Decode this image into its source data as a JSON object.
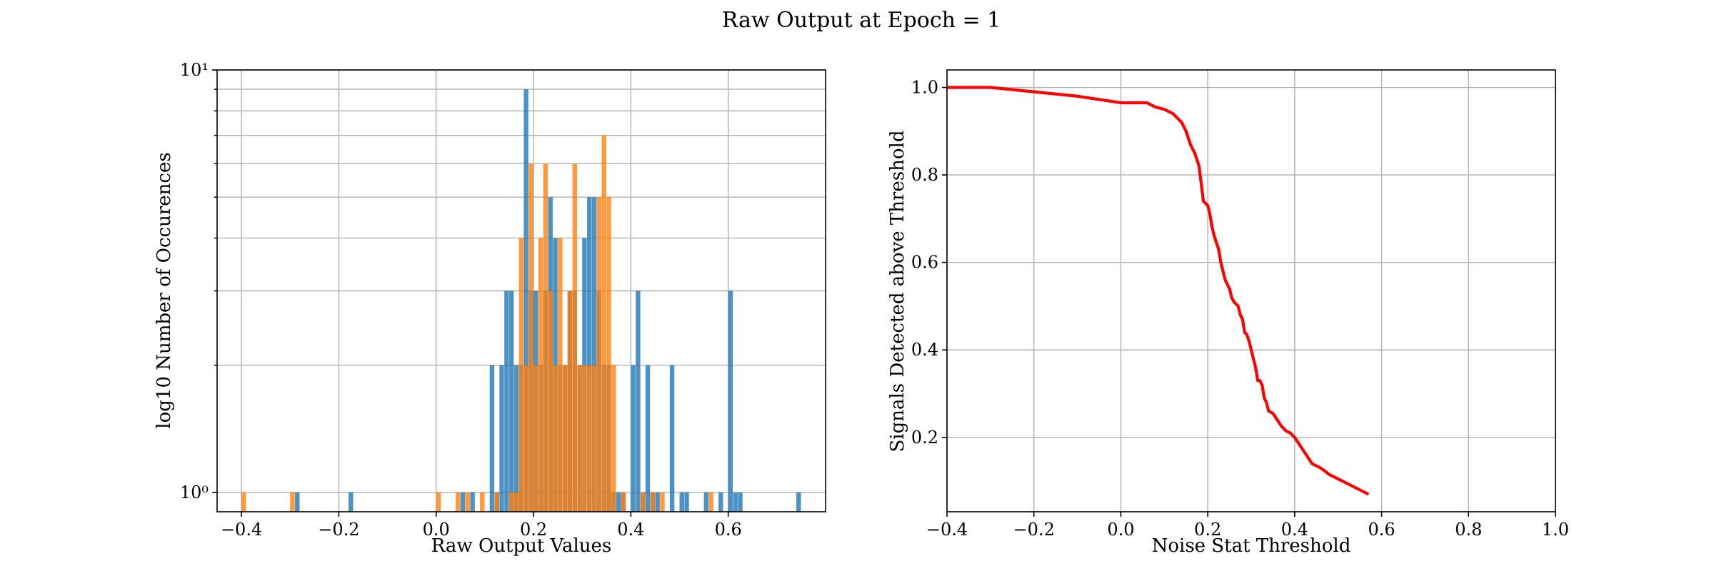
{
  "figure": {
    "title": "Raw Output at Epoch = 1"
  },
  "chart_data": [
    {
      "type": "bar",
      "subtype": "histogram",
      "xlabel": "Raw Output Values",
      "ylabel": "log10 Number of Occurences",
      "xlim": [
        -0.45,
        0.8
      ],
      "ylim": [
        0.9,
        10
      ],
      "yscale": "log",
      "grid": true,
      "xticks": [
        -0.4,
        -0.2,
        0.0,
        0.2,
        0.4,
        0.6
      ],
      "xtick_labels": [
        "−0.4",
        "−0.2",
        "0.0",
        "0.2",
        "0.4",
        "0.6"
      ],
      "yticks": [
        1,
        10
      ],
      "ytick_labels": [
        "10⁰",
        "10¹"
      ],
      "bin_width": 0.01,
      "series": [
        {
          "color": "#1f77b4",
          "bins": [
            [
              -0.29,
              1
            ],
            [
              -0.18,
              1
            ],
            [
              0.05,
              1
            ],
            [
              0.07,
              1
            ],
            [
              0.11,
              2
            ],
            [
              0.12,
              1
            ],
            [
              0.13,
              2
            ],
            [
              0.14,
              3
            ],
            [
              0.15,
              3
            ],
            [
              0.16,
              2
            ],
            [
              0.17,
              2
            ],
            [
              0.18,
              9
            ],
            [
              0.19,
              3
            ],
            [
              0.2,
              3
            ],
            [
              0.21,
              2
            ],
            [
              0.22,
              3
            ],
            [
              0.23,
              5
            ],
            [
              0.24,
              4
            ],
            [
              0.25,
              2
            ],
            [
              0.26,
              2
            ],
            [
              0.27,
              3
            ],
            [
              0.28,
              3
            ],
            [
              0.29,
              2
            ],
            [
              0.3,
              4
            ],
            [
              0.31,
              5
            ],
            [
              0.32,
              5
            ],
            [
              0.33,
              3
            ],
            [
              0.34,
              2
            ],
            [
              0.35,
              2
            ],
            [
              0.36,
              1
            ],
            [
              0.37,
              1
            ],
            [
              0.38,
              1
            ],
            [
              0.4,
              2
            ],
            [
              0.41,
              3
            ],
            [
              0.42,
              1
            ],
            [
              0.43,
              2
            ],
            [
              0.44,
              1
            ],
            [
              0.45,
              1
            ],
            [
              0.48,
              2
            ],
            [
              0.5,
              1
            ],
            [
              0.51,
              1
            ],
            [
              0.55,
              1
            ],
            [
              0.58,
              1
            ],
            [
              0.6,
              3
            ],
            [
              0.61,
              1
            ],
            [
              0.62,
              1
            ],
            [
              0.74,
              1
            ]
          ]
        },
        {
          "color": "#ff7f0e",
          "bins": [
            [
              -0.4,
              1
            ],
            [
              -0.3,
              1
            ],
            [
              0.0,
              1
            ],
            [
              0.04,
              1
            ],
            [
              0.06,
              1
            ],
            [
              0.09,
              1
            ],
            [
              0.12,
              1
            ],
            [
              0.15,
              1
            ],
            [
              0.16,
              1
            ],
            [
              0.17,
              4
            ],
            [
              0.18,
              2
            ],
            [
              0.19,
              6
            ],
            [
              0.2,
              2
            ],
            [
              0.21,
              4
            ],
            [
              0.22,
              6
            ],
            [
              0.23,
              3
            ],
            [
              0.24,
              2
            ],
            [
              0.25,
              4
            ],
            [
              0.26,
              2
            ],
            [
              0.27,
              3
            ],
            [
              0.28,
              6
            ],
            [
              0.29,
              2
            ],
            [
              0.3,
              2
            ],
            [
              0.31,
              2
            ],
            [
              0.32,
              2
            ],
            [
              0.33,
              5
            ],
            [
              0.34,
              7
            ],
            [
              0.35,
              5
            ],
            [
              0.36,
              2
            ],
            [
              0.38,
              1
            ],
            [
              0.42,
              1
            ],
            [
              0.44,
              1
            ],
            [
              0.46,
              1
            ],
            [
              0.56,
              1
            ]
          ]
        }
      ]
    },
    {
      "type": "line",
      "xlabel": "Noise Stat Threshold",
      "ylabel": "Signals Detected above Threshold",
      "xlim": [
        -0.4,
        1.0
      ],
      "ylim": [
        0.03,
        1.04
      ],
      "grid": true,
      "xticks": [
        -0.4,
        -0.2,
        0.0,
        0.2,
        0.4,
        0.6,
        0.8,
        1.0
      ],
      "xtick_labels": [
        "−0.4",
        "−0.2",
        "0.0",
        "0.2",
        "0.4",
        "0.6",
        "0.8",
        "1.0"
      ],
      "yticks": [
        0.2,
        0.4,
        0.6,
        0.8,
        1.0
      ],
      "ytick_labels": [
        "0.2",
        "0.4",
        "0.6",
        "0.8",
        "1.0"
      ],
      "series": [
        {
          "color": "#ff0000",
          "points": [
            [
              -0.4,
              1.0
            ],
            [
              -0.3,
              1.0
            ],
            [
              -0.2,
              0.99
            ],
            [
              -0.1,
              0.98
            ],
            [
              0.0,
              0.965
            ],
            [
              0.06,
              0.965
            ],
            [
              0.08,
              0.955
            ],
            [
              0.1,
              0.95
            ],
            [
              0.12,
              0.94
            ],
            [
              0.13,
              0.93
            ],
            [
              0.14,
              0.92
            ],
            [
              0.15,
              0.9
            ],
            [
              0.16,
              0.87
            ],
            [
              0.17,
              0.85
            ],
            [
              0.18,
              0.82
            ],
            [
              0.185,
              0.78
            ],
            [
              0.19,
              0.74
            ],
            [
              0.2,
              0.73
            ],
            [
              0.205,
              0.71
            ],
            [
              0.21,
              0.68
            ],
            [
              0.215,
              0.66
            ],
            [
              0.22,
              0.645
            ],
            [
              0.225,
              0.63
            ],
            [
              0.23,
              0.6
            ],
            [
              0.235,
              0.58
            ],
            [
              0.24,
              0.56
            ],
            [
              0.25,
              0.54
            ],
            [
              0.255,
              0.52
            ],
            [
              0.26,
              0.51
            ],
            [
              0.27,
              0.5
            ],
            [
              0.275,
              0.48
            ],
            [
              0.28,
              0.47
            ],
            [
              0.285,
              0.44
            ],
            [
              0.29,
              0.435
            ],
            [
              0.295,
              0.42
            ],
            [
              0.3,
              0.4
            ],
            [
              0.305,
              0.38
            ],
            [
              0.31,
              0.36
            ],
            [
              0.315,
              0.33
            ],
            [
              0.32,
              0.33
            ],
            [
              0.325,
              0.32
            ],
            [
              0.33,
              0.29
            ],
            [
              0.335,
              0.28
            ],
            [
              0.34,
              0.26
            ],
            [
              0.35,
              0.255
            ],
            [
              0.36,
              0.24
            ],
            [
              0.37,
              0.225
            ],
            [
              0.38,
              0.215
            ],
            [
              0.39,
              0.21
            ],
            [
              0.4,
              0.2
            ],
            [
              0.42,
              0.17
            ],
            [
              0.44,
              0.14
            ],
            [
              0.46,
              0.13
            ],
            [
              0.48,
              0.115
            ],
            [
              0.5,
              0.105
            ],
            [
              0.53,
              0.09
            ],
            [
              0.57,
              0.07
            ]
          ]
        }
      ]
    }
  ]
}
